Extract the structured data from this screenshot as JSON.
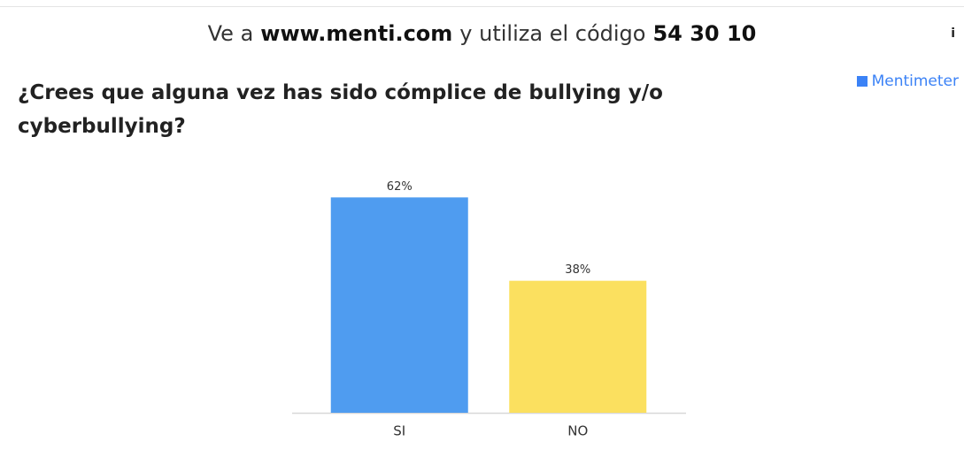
{
  "header": {
    "parts": [
      "Ve a",
      "www.menti.com",
      "y utiliza el código",
      "54 30 10"
    ],
    "info_icon": "i"
  },
  "brand": "Mentimeter",
  "chart_data": {
    "type": "bar",
    "title": "¿Crees que alguna vez has sido cómplice de bullying y/o cyberbullying?",
    "categories": [
      "SI",
      "NO"
    ],
    "values": [
      62,
      38
    ],
    "value_labels": [
      "62%",
      "38%"
    ],
    "colors": [
      "#4f9cf0",
      "#fbe05f"
    ],
    "ylim": [
      0,
      100
    ]
  }
}
